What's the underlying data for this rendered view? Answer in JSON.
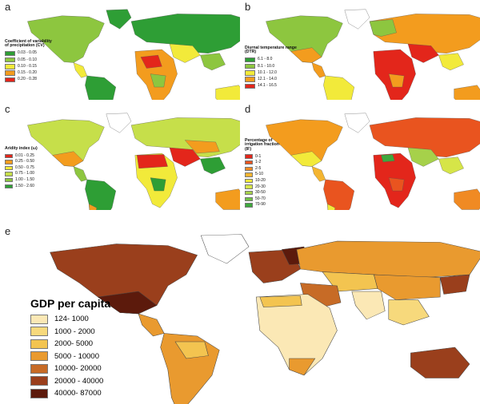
{
  "panels": {
    "a": {
      "letter": "a",
      "legend_title_line1": "Coefficient of variability",
      "legend_title_line2": "of precipitation (CV)",
      "legend": [
        {
          "label": "0.03 - 0.05",
          "color": "#2e9e35"
        },
        {
          "label": "0.05 - 0.10",
          "color": "#8dc63f"
        },
        {
          "label": "0.10 - 0.15",
          "color": "#f2ea3a"
        },
        {
          "label": "0.15 - 0.20",
          "color": "#f39c1e"
        },
        {
          "label": "0.20 - 0.28",
          "color": "#e3261b"
        }
      ]
    },
    "b": {
      "letter": "b",
      "legend_title_line1": "Diurnal temperature range",
      "legend_title_line2": "(DTR)",
      "legend": [
        {
          "label": "6.1 - 8.0",
          "color": "#2e9e35"
        },
        {
          "label": "8.1 - 10.0",
          "color": "#8dc63f"
        },
        {
          "label": "10.1 - 12.0",
          "color": "#f2ea3a"
        },
        {
          "label": "12.1 - 14.0",
          "color": "#f39c1e"
        },
        {
          "label": "14.1 - 16.5",
          "color": "#e3261b"
        }
      ]
    },
    "c": {
      "letter": "c",
      "legend_title_line1": "Aridity index (ω)",
      "legend": [
        {
          "label": "0.01 - 0.25",
          "color": "#e3261b"
        },
        {
          "label": "0.25 - 0.50",
          "color": "#f39c1e"
        },
        {
          "label": "0.50 - 0.75",
          "color": "#f2ea3a"
        },
        {
          "label": "0.75 - 1.00",
          "color": "#c6df4a"
        },
        {
          "label": "1.00 - 1.50",
          "color": "#8dc63f"
        },
        {
          "label": "1.50 - 2.60",
          "color": "#2e9e35"
        }
      ]
    },
    "d": {
      "letter": "d",
      "legend_title_line1": "Percentage of",
      "legend_title_line2": "irrigation fraction",
      "legend_title_line3": "(IF)",
      "legend": [
        {
          "label": "0-1",
          "color": "#e3261b"
        },
        {
          "label": "1-2",
          "color": "#e9541f"
        },
        {
          "label": "2-5",
          "color": "#f08a23"
        },
        {
          "label": "5-10",
          "color": "#f4b531"
        },
        {
          "label": "10-20",
          "color": "#f2ea3a"
        },
        {
          "label": "20-30",
          "color": "#d6e548"
        },
        {
          "label": "30-50",
          "color": "#a6d14a"
        },
        {
          "label": "50-70",
          "color": "#6fbf45"
        },
        {
          "label": "70-90",
          "color": "#3fa83d"
        }
      ]
    },
    "e": {
      "letter": "e",
      "legend_title": "GDP per capita",
      "legend": [
        {
          "label": "124- 1000",
          "color": "#fbe8b5"
        },
        {
          "label": "1000 - 2000",
          "color": "#f7d97c"
        },
        {
          "label": "2000- 5000",
          "color": "#f3c450"
        },
        {
          "label": "5000 - 10000",
          "color": "#e99a2f"
        },
        {
          "label": "10000- 20000",
          "color": "#c76b26"
        },
        {
          "label": "20000 - 40000",
          "color": "#9a3f1c"
        },
        {
          "label": "40000- 87000",
          "color": "#5c1a0c"
        }
      ]
    }
  }
}
